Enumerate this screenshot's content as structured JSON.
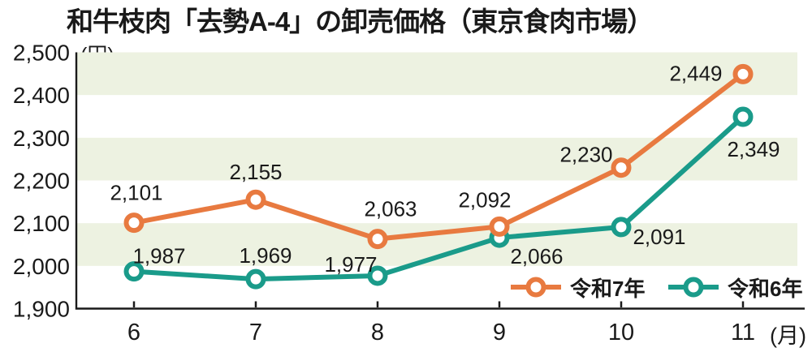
{
  "chart_data": {
    "type": "line",
    "title": "和牛枝肉「去勢A-4」の卸売価格（東京食肉市場）",
    "y_unit": "(円)",
    "x_unit": "(月)",
    "x": [
      6,
      7,
      8,
      9,
      10,
      11
    ],
    "x_tick_labels": [
      "6",
      "7",
      "8",
      "9",
      "10",
      "11"
    ],
    "ylim": [
      1900,
      2500
    ],
    "y_ticks": [
      2500,
      2400,
      2300,
      2200,
      2100,
      2000,
      1900
    ],
    "y_tick_labels": [
      "2,500",
      "2,400",
      "2,300",
      "2,200",
      "2,100",
      "2,000",
      "1,900"
    ],
    "grid_bands": [
      [
        2000,
        2100
      ],
      [
        2200,
        2300
      ],
      [
        2400,
        2500
      ]
    ],
    "band_color": "#edf2e1",
    "axis_color": "#1a1a1a",
    "label_color": "#1a1a1a",
    "legend_position": "bottom-right-inside",
    "series": [
      {
        "name": "令和7年",
        "color": "#e87a40",
        "values": [
          2101,
          2155,
          2063,
          2092,
          2230,
          2449
        ],
        "value_labels": [
          "2,101",
          "2,155",
          "2,063",
          "2,092",
          "2,230",
          "2,449"
        ],
        "label_offsets": [
          [
            3,
            -37
          ],
          [
            0,
            -34
          ],
          [
            16,
            -37
          ],
          [
            -18,
            -33
          ],
          [
            -43,
            -16
          ],
          [
            -58,
            -1
          ]
        ]
      },
      {
        "name": "令和6年",
        "color": "#1a9b8a",
        "values": [
          1987,
          1969,
          1977,
          2066,
          2091,
          2349
        ],
        "value_labels": [
          "1,987",
          "1,969",
          "1,977",
          "2,066",
          "2,091",
          "2,349"
        ],
        "label_offsets": [
          [
            31,
            -19
          ],
          [
            12,
            -29
          ],
          [
            -33,
            -14
          ],
          [
            46,
            23
          ],
          [
            47,
            12
          ],
          [
            13,
            40
          ]
        ]
      }
    ]
  }
}
